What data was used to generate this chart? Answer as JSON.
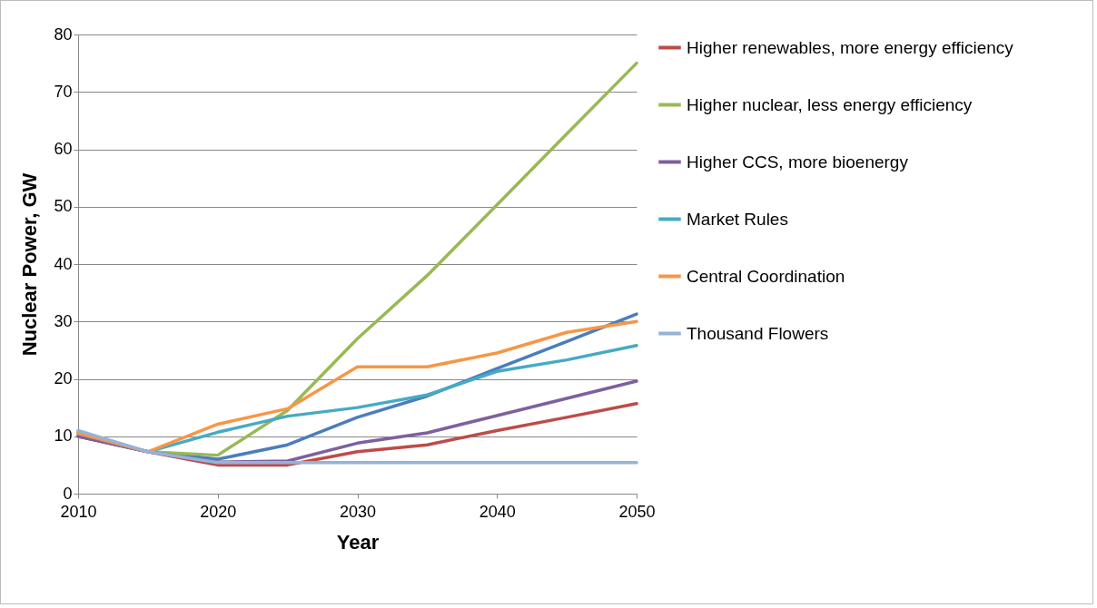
{
  "chart_data": {
    "type": "line",
    "xlabel": "Year",
    "ylabel": "Nuclear Power, GW",
    "x": [
      2010,
      2015,
      2020,
      2025,
      2030,
      2035,
      2040,
      2045,
      2050
    ],
    "xlim": [
      2010,
      2050
    ],
    "xticks": [
      2010,
      2020,
      2030,
      2040,
      2050
    ],
    "ylim": [
      0,
      80
    ],
    "yticks": [
      0,
      10,
      20,
      30,
      40,
      50,
      60,
      70,
      80
    ],
    "grid": "y",
    "legend": "right",
    "marker": "none",
    "line_style": "solid",
    "series": [
      {
        "color": "#4a7ebb",
        "values": [
          10,
          7.3,
          6,
          8.5,
          13.3,
          17,
          21.8,
          26.5,
          31.3
        ]
      },
      {
        "name": "Higher renewables, more energy efficiency",
        "color": "#be4b48",
        "values": [
          10,
          7.3,
          5,
          5,
          7.3,
          8.5,
          11,
          13.3,
          15.7
        ]
      },
      {
        "name": "Higher nuclear, less energy efficiency",
        "color": "#98b954",
        "values": [
          10.5,
          7.3,
          6.7,
          14.5,
          27,
          38,
          50.3,
          62.7,
          75
        ]
      },
      {
        "name": "Higher CCS, more bioenergy",
        "color": "#7d60a0",
        "values": [
          10,
          7.3,
          5.5,
          5.7,
          8.8,
          10.6,
          13.6,
          16.6,
          19.6
        ]
      },
      {
        "name": "Market Rules",
        "color": "#46aac5",
        "values": [
          10.8,
          7.3,
          10.7,
          13.5,
          15,
          17.2,
          21.3,
          23.3,
          25.8
        ]
      },
      {
        "name": "Central Coordination",
        "color": "#f79646",
        "values": [
          10.5,
          7.3,
          12.1,
          14.8,
          22.1,
          22.1,
          24.5,
          28.1,
          30
        ]
      },
      {
        "name": "Thousand Flowers",
        "color": "#95b3d7",
        "values": [
          11,
          7.3,
          5.4,
          5.4,
          5.4,
          5.4,
          5.4,
          5.4,
          5.4
        ]
      }
    ]
  }
}
